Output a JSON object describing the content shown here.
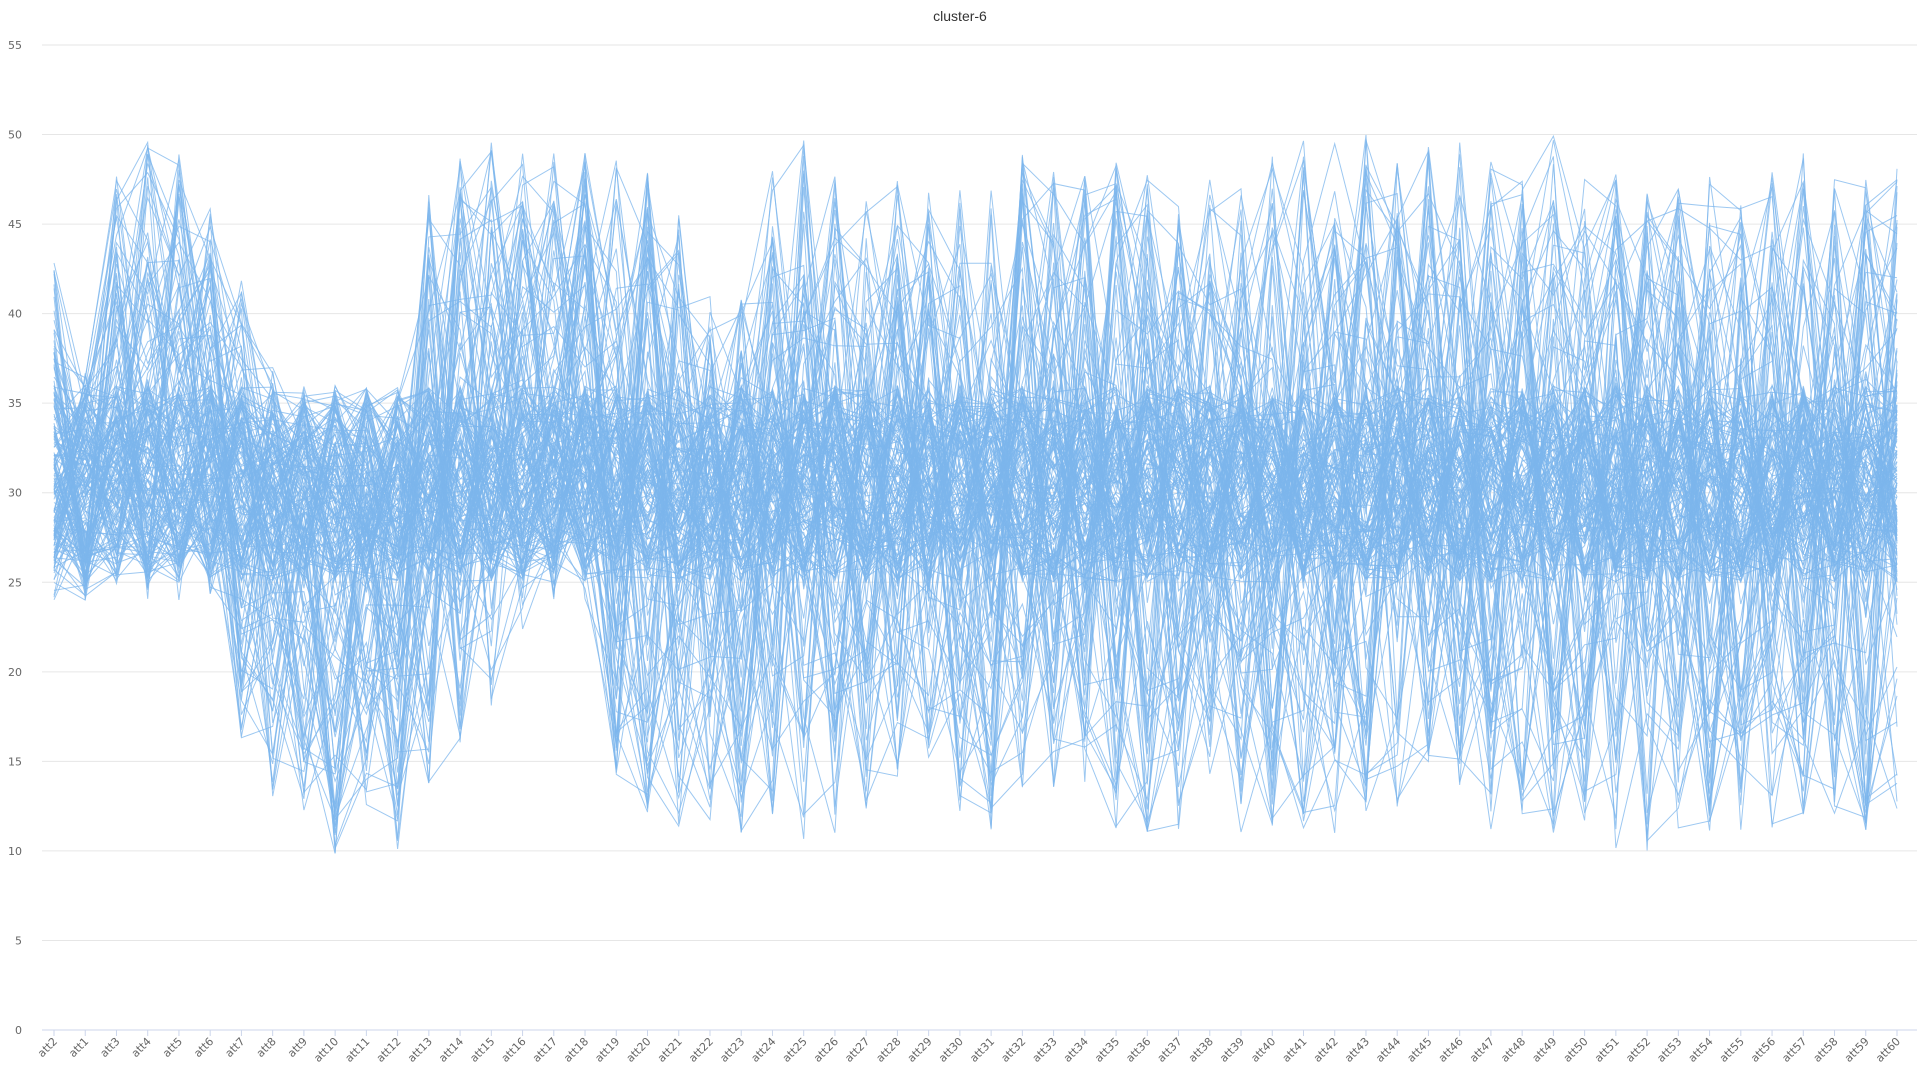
{
  "chart_data": {
    "type": "line",
    "title": "cluster-6",
    "xlabel": "",
    "ylabel": "",
    "ylim": [
      0,
      55
    ],
    "yticks": [
      "0",
      "5",
      "10",
      "15",
      "20",
      "25",
      "30",
      "35",
      "40",
      "45",
      "50",
      "55"
    ],
    "grid": true,
    "legend": "none",
    "color": "#7cb5ec",
    "series_count": 180,
    "seed": 6,
    "categories": [
      "att2",
      "att1",
      "att3",
      "att4",
      "att5",
      "att6",
      "att7",
      "att8",
      "att9",
      "att10",
      "att11",
      "att12",
      "att13",
      "att14",
      "att15",
      "att16",
      "att17",
      "att18",
      "att19",
      "att20",
      "att21",
      "att22",
      "att23",
      "att24",
      "att25",
      "att26",
      "att27",
      "att28",
      "att29",
      "att30",
      "att31",
      "att32",
      "att33",
      "att34",
      "att35",
      "att36",
      "att37",
      "att38",
      "att39",
      "att40",
      "att41",
      "att42",
      "att43",
      "att44",
      "att45",
      "att46",
      "att47",
      "att48",
      "att49",
      "att50",
      "att51",
      "att52",
      "att53",
      "att54",
      "att55",
      "att56",
      "att57",
      "att58",
      "att59",
      "att60"
    ],
    "profile": {
      "min": [
        24,
        24,
        24,
        24,
        24,
        24,
        16,
        13,
        12,
        9.5,
        12.5,
        10,
        13,
        16,
        18,
        22,
        24,
        24,
        12,
        12,
        11,
        11,
        11,
        10.5,
        10.5,
        11,
        12,
        14,
        15,
        12,
        11,
        13,
        13,
        13,
        11,
        11,
        11,
        13,
        11,
        11,
        11,
        11,
        12,
        12,
        12,
        12,
        11,
        11,
        11,
        11,
        10,
        10,
        11,
        11,
        11,
        11,
        11,
        12,
        11,
        11
      ],
      "max": [
        43,
        37,
        48,
        50,
        49,
        46,
        42,
        38,
        36,
        36,
        36,
        36,
        47,
        49,
        50,
        49,
        49,
        49,
        49,
        49,
        46,
        41,
        41,
        48,
        50,
        48,
        48,
        48,
        47,
        47,
        48,
        49,
        48,
        48,
        49,
        49,
        46,
        48,
        47,
        49,
        50,
        50,
        50,
        49,
        50,
        50,
        49,
        49,
        50,
        48,
        48,
        48,
        48,
        48,
        47,
        48,
        49,
        48,
        48,
        49
      ]
    }
  }
}
